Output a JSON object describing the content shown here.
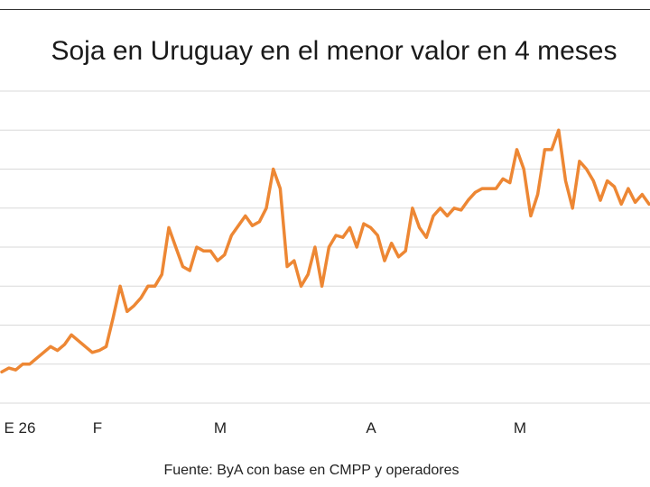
{
  "chart_data": {
    "type": "line",
    "title": "Soja en Uruguay en el menor valor en 4 meses",
    "source": "Fuente: ByA con base en CMPP y operadores",
    "x_tick_labels": [
      "E 26",
      "F",
      "M",
      "A",
      "M"
    ],
    "grid": true,
    "legend": "none",
    "series_color": "#ED8734",
    "ylim": [
      0,
      8
    ],
    "y_gridlines": [
      0,
      1,
      2,
      3,
      4,
      5,
      6,
      7,
      8
    ],
    "series": [
      {
        "values": [
          0.8,
          0.9,
          0.85,
          1.0,
          1.0,
          1.15,
          1.3,
          1.45,
          1.35,
          1.5,
          1.75,
          1.6,
          1.45,
          1.3,
          1.35,
          1.45,
          2.2,
          3.0,
          2.35,
          2.5,
          2.7,
          3.0,
          3.0,
          3.3,
          4.5,
          4.0,
          3.5,
          3.4,
          4.0,
          3.9,
          3.9,
          3.65,
          3.8,
          4.3,
          4.55,
          4.8,
          4.55,
          4.65,
          5.0,
          6.0,
          5.5,
          3.5,
          3.65,
          3.0,
          3.3,
          4.0,
          3.0,
          4.0,
          4.3,
          4.25,
          4.5,
          4.0,
          4.6,
          4.5,
          4.3,
          3.65,
          4.1,
          3.75,
          3.9,
          5.0,
          4.5,
          4.25,
          4.8,
          5.0,
          4.8,
          5.0,
          4.95,
          5.2,
          5.4,
          5.5,
          5.5,
          5.5,
          5.75,
          5.65,
          6.5,
          6.0,
          4.8,
          5.35,
          6.5,
          6.5,
          7.0,
          5.7,
          5.0,
          6.2,
          6.0,
          5.7,
          5.2,
          5.7,
          5.55,
          5.1,
          5.5,
          5.15,
          5.35,
          5.1
        ]
      }
    ]
  }
}
